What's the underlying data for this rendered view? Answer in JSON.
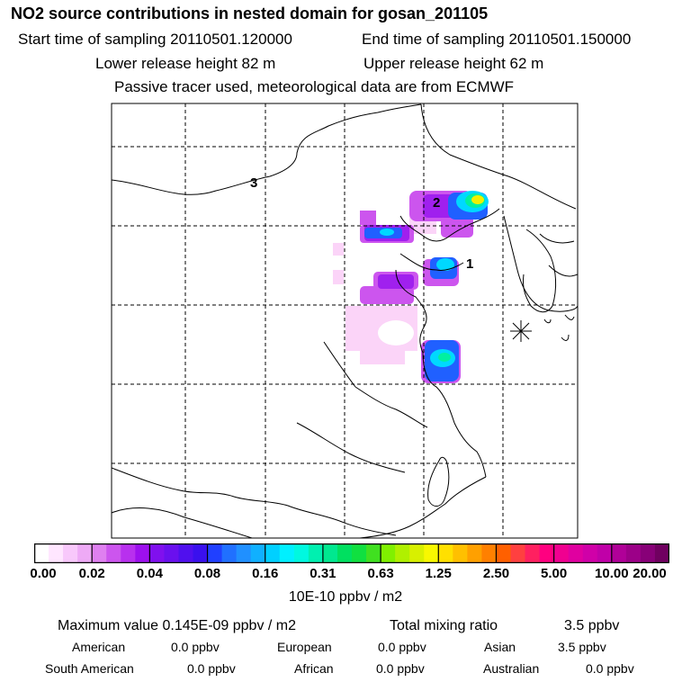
{
  "header": {
    "title": "NO2 source contributions in nested domain for gosan_201105",
    "start_time": "Start time of sampling 20110501.120000",
    "end_time": "End time of sampling 20110501.150000",
    "lower_release": "Lower release height   82 m",
    "upper_release": "Upper release height   62 m",
    "note": "Passive tracer used, meteorological data are from ECMWF"
  },
  "map": {
    "markers": [
      {
        "label": "1",
        "name": "marker-1"
      },
      {
        "label": "2",
        "name": "marker-2"
      },
      {
        "label": "3",
        "name": "marker-3"
      }
    ]
  },
  "legend": {
    "ticks": [
      "0.00",
      "0.02",
      "0.04",
      "0.08",
      "0.16",
      "0.31",
      "0.63",
      "1.25",
      "2.50",
      "5.00",
      "10.00",
      "20.00"
    ],
    "colors": [
      "#ffffff",
      "#ffe6ff",
      "#f8c8fb",
      "#eeaaf6",
      "#df80f0",
      "#cc55ee",
      "#b830ee",
      "#9d10ee",
      "#8010ee",
      "#6a10ee",
      "#5010ee",
      "#3a10ee",
      "#2040ff",
      "#2070ff",
      "#2090ff",
      "#10b0ff",
      "#00d0ff",
      "#00f0ff",
      "#00f8e0",
      "#00f0b0",
      "#00e890",
      "#00e060",
      "#10e040",
      "#40e020",
      "#80f000",
      "#b0f000",
      "#d8f000",
      "#f8f800",
      "#ffe000",
      "#ffc000",
      "#ffa000",
      "#ff8000",
      "#ff6000",
      "#ff4040",
      "#ff2060",
      "#ff0080",
      "#f00090",
      "#e000a0",
      "#d000a8",
      "#c000a8",
      "#b00098",
      "#9c0088",
      "#880078",
      "#700060"
    ],
    "units": "10E-10 ppbv / m2"
  },
  "summary": {
    "max_label": "Maximum value  0.145E-09 ppbv / m2",
    "total_label": "Total mixing ratio",
    "total_value": "3.5 ppbv",
    "rows": [
      [
        {
          "name": "American",
          "value": "0.0 ppbv"
        },
        {
          "name": "European",
          "value": "0.0 ppbv"
        },
        {
          "name": "Asian",
          "value": "3.5 ppbv"
        }
      ],
      [
        {
          "name": "South American",
          "value": "0.0 ppbv"
        },
        {
          "name": "African",
          "value": "0.0 ppbv"
        },
        {
          "name": "Australian",
          "value": "0.0 ppbv"
        }
      ]
    ]
  }
}
